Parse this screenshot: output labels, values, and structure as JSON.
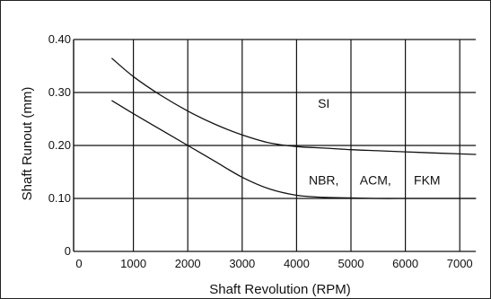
{
  "chart_data": {
    "type": "line",
    "xlabel": "Shaft Revolution (RPM)",
    "ylabel": "Shaft Runout (mm)",
    "xlim": [
      0,
      7300
    ],
    "ylim": [
      0,
      0.4
    ],
    "x_ticks": [
      "0",
      "1000",
      "2000",
      "3000",
      "4000",
      "5000",
      "6000",
      "7000"
    ],
    "y_ticks": [
      "0",
      "0.10",
      "0.20",
      "0.30",
      "0.40"
    ],
    "grid": true,
    "series": [
      {
        "x": [
          600,
          1000,
          1500,
          2000,
          2500,
          3000,
          3500,
          4000,
          4500,
          5000,
          5500,
          6000,
          6500,
          7000,
          7300
        ],
        "y": [
          0.365,
          0.33,
          0.295,
          0.265,
          0.24,
          0.22,
          0.205,
          0.198,
          0.195,
          0.192,
          0.19,
          0.188,
          0.186,
          0.184,
          0.183
        ]
      },
      {
        "x": [
          600,
          1000,
          1500,
          2000,
          2500,
          3000,
          3500,
          4000,
          4500,
          5000,
          5500,
          6000,
          6500,
          7000,
          7300
        ],
        "y": [
          0.285,
          0.26,
          0.23,
          0.2,
          0.17,
          0.14,
          0.118,
          0.106,
          0.102,
          0.101,
          0.1,
          0.1,
          0.1,
          0.1,
          0.1
        ]
      }
    ],
    "annotations": [
      {
        "text": "SI",
        "x": 4500,
        "y": 0.28
      },
      {
        "text": "NBR,",
        "x": 4500,
        "y": 0.135
      },
      {
        "text": "ACM,",
        "x": 5450,
        "y": 0.135
      },
      {
        "text": "FKM",
        "x": 6400,
        "y": 0.135
      }
    ]
  }
}
